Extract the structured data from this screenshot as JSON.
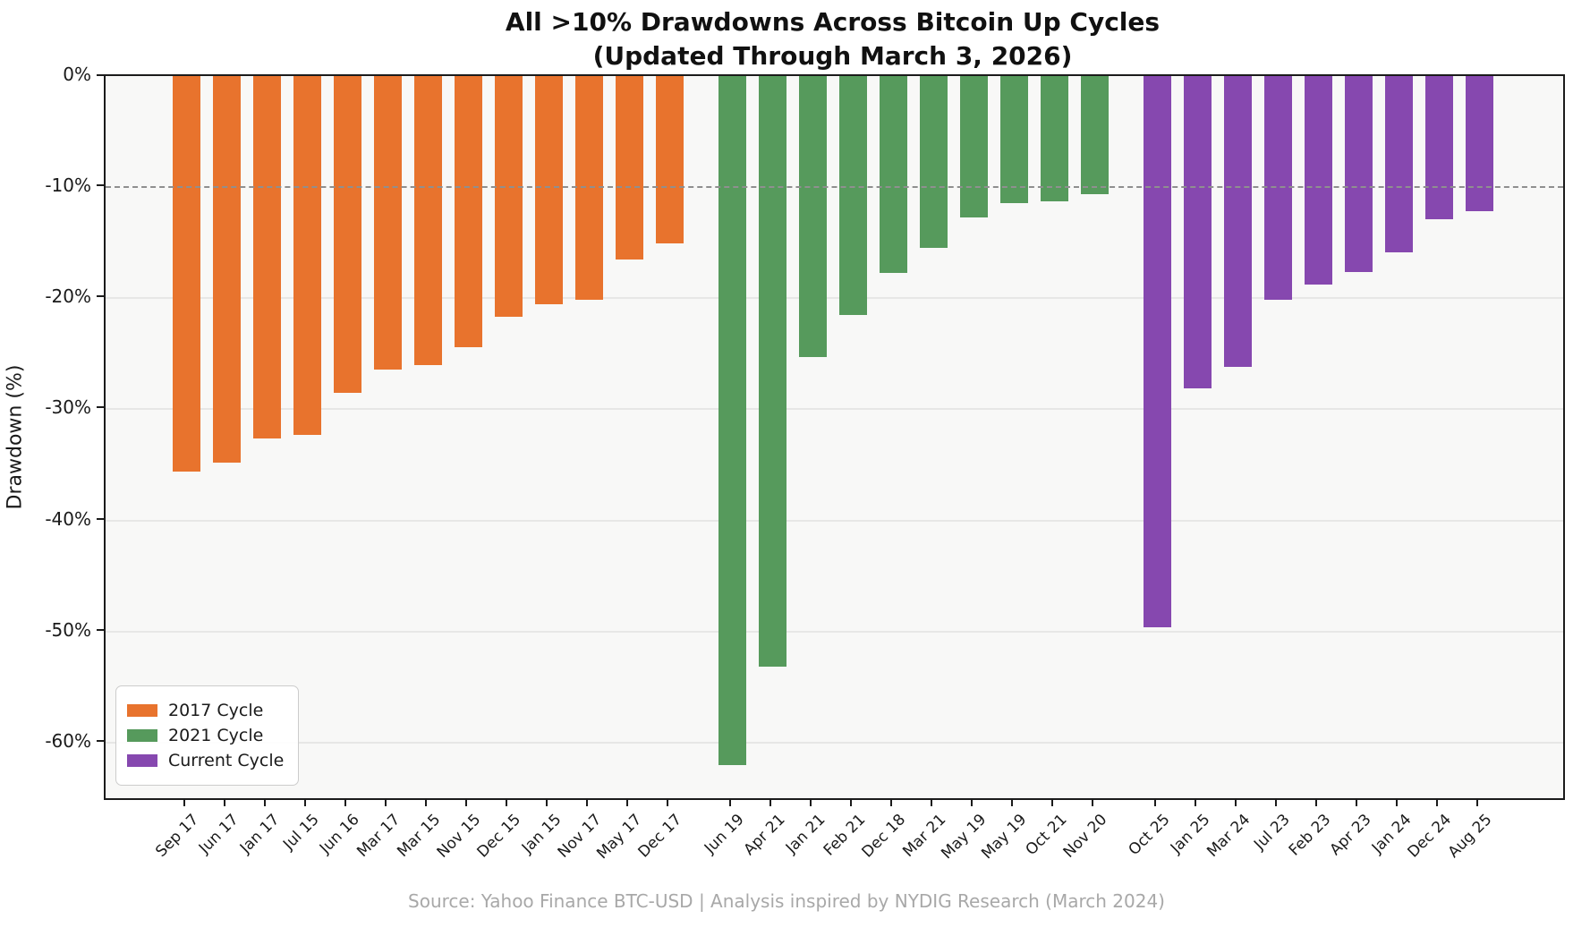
{
  "title": {
    "line1": "All >10% Drawdowns Across Bitcoin Up Cycles",
    "line2": "(Updated Through March 3, 2026)"
  },
  "source": "Source: Yahoo Finance BTC-USD | Analysis inspired by NYDIG Research (March 2024)",
  "colors": {
    "cycle_2017": "#e8732d",
    "cycle_2021": "#569a5c",
    "cycle_current": "#8648af",
    "threshold_dash": "#8f8f8f",
    "plot_background": "#f8f8f7",
    "grid": "#e7e7e6"
  },
  "chart_data": {
    "type": "bar",
    "title": "All >10% Drawdowns Across Bitcoin Up Cycles (Updated Through March 3, 2026)",
    "xlabel": "",
    "ylabel": "Drawdown (%)",
    "ylim": [
      -65,
      0
    ],
    "yticks": [
      0,
      -10,
      -20,
      -30,
      -40,
      -50,
      -60
    ],
    "ytick_labels": [
      "0%",
      "-10%",
      "-20%",
      "-30%",
      "-40%",
      "-50%",
      "-60%"
    ],
    "grid": true,
    "legend_position": "lower left",
    "threshold_line": {
      "y": -10,
      "style": "dashed"
    },
    "series": [
      {
        "name": "2017 Cycle",
        "color": "#e8732d",
        "categories": [
          "Sep 17",
          "Jun 17",
          "Jan 17",
          "Jul 15",
          "Jun 16",
          "Mar 17",
          "Mar 15",
          "Nov 15",
          "Dec 15",
          "Jan 15",
          "Nov 17",
          "May 17",
          "Dec 17"
        ],
        "values": [
          -35.6,
          -34.8,
          -32.6,
          -32.3,
          -28.5,
          -26.4,
          -26.0,
          -24.4,
          -21.7,
          -20.5,
          -20.1,
          -16.5,
          -15.1
        ]
      },
      {
        "name": "2021 Cycle",
        "color": "#569a5c",
        "categories": [
          "Jun 19",
          "Apr 21",
          "Jan 21",
          "Feb 21",
          "Dec 18",
          "Mar 21",
          "May 19",
          "May 19",
          "Oct 21",
          "Nov 20"
        ],
        "values": [
          -62.0,
          -53.2,
          -25.3,
          -21.5,
          -17.7,
          -15.5,
          -12.7,
          -11.4,
          -11.3,
          -10.6
        ]
      },
      {
        "name": "Current Cycle",
        "color": "#8648af",
        "categories": [
          "Oct 25",
          "Jan 25",
          "Mar 24",
          "Jul 23",
          "Feb 23",
          "Apr 23",
          "Jan 24",
          "Dec 24",
          "Aug 25"
        ],
        "values": [
          -49.6,
          -28.1,
          -26.2,
          -20.1,
          -18.8,
          -17.6,
          -15.9,
          -12.9,
          -12.2
        ]
      }
    ]
  }
}
